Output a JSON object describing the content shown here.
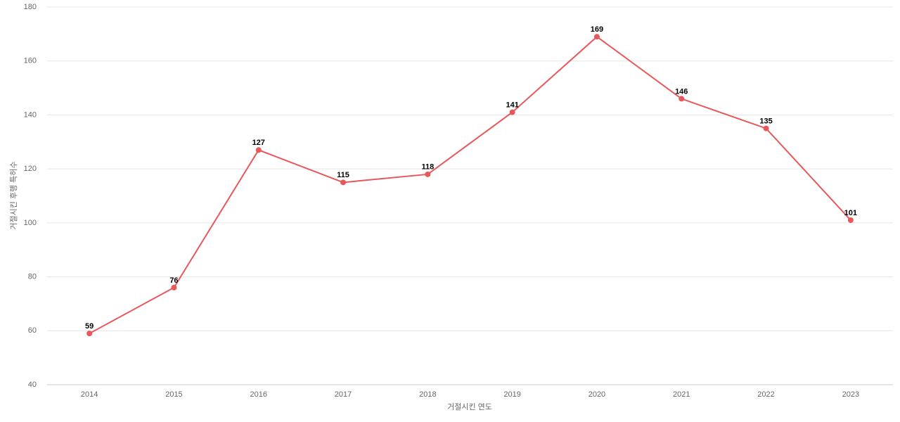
{
  "chart_data": {
    "type": "line",
    "x_label": "거절시킨 연도",
    "y_label": "거절시킨 후행 특허수",
    "categories": [
      "2014",
      "2015",
      "2016",
      "2017",
      "2018",
      "2019",
      "2020",
      "2021",
      "2022",
      "2023"
    ],
    "series": [
      {
        "name": "거절시킨 후행 특허수",
        "color": "#e8585a",
        "values": [
          59,
          76,
          127,
          115,
          118,
          141,
          169,
          146,
          135,
          101
        ]
      }
    ],
    "ylim": [
      40,
      180
    ],
    "yticks": [
      40,
      60,
      80,
      100,
      120,
      140,
      160,
      180
    ],
    "grid": true
  }
}
